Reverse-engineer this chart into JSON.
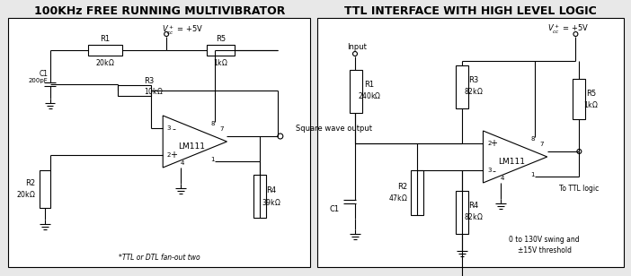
{
  "title_left": "100KHz FREE RUNNING MULTIVIBRATOR",
  "title_right": "TTL INTERFACE WITH HIGH LEVEL LOGIC",
  "bg_color": "#e8e8e8",
  "box_color": "#ffffff",
  "line_color": "#000000",
  "title_fontsize": 9,
  "label_fontsize": 6.5,
  "note_left": "*TTL or DTL fan-out two",
  "note_right_1": "0 to 130V swing and",
  "note_right_2": "±15V threshold"
}
